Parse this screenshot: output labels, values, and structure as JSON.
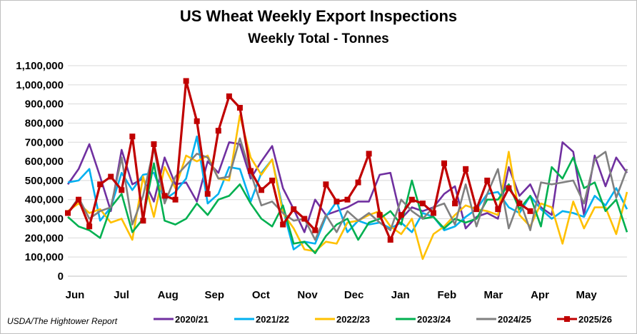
{
  "source": "USDA/The Hightower Report",
  "chart_data": {
    "type": "line",
    "title": "US Wheat Weekly Export Inspections",
    "subtitle": "Weekly Total - Tonnes",
    "xlabel": "",
    "ylabel": "",
    "ylim": [
      0,
      1100000
    ],
    "yticks": [
      "0",
      "100,000",
      "200,000",
      "300,000",
      "400,000",
      "500,000",
      "600,000",
      "700,000",
      "800,000",
      "900,000",
      "1,000,000",
      "1,100,000"
    ],
    "months": [
      "Jun",
      "Jul",
      "Aug",
      "Sep",
      "Oct",
      "Nov",
      "Dec",
      "Jan",
      "Feb",
      "Mar",
      "Apr",
      "May"
    ],
    "weeks_per_year": 53,
    "grid": "horizontal",
    "legend_position": "bottom",
    "series": [
      {
        "name": "2020/21",
        "color": "#7030a0",
        "values": [
          480000,
          560000,
          690000,
          520000,
          340000,
          660000,
          480000,
          510000,
          390000,
          620000,
          480000,
          490000,
          390000,
          600000,
          540000,
          700000,
          690000,
          510000,
          600000,
          680000,
          460000,
          350000,
          230000,
          400000,
          320000,
          340000,
          360000,
          390000,
          390000,
          530000,
          540000,
          300000,
          360000,
          340000,
          360000,
          430000,
          470000,
          250000,
          310000,
          330000,
          300000,
          570000,
          420000,
          480000,
          360000,
          320000,
          700000,
          650000,
          320000,
          630000,
          470000,
          620000,
          540000
        ]
      },
      {
        "name": "2021/22",
        "color": "#00b0f0",
        "values": [
          490000,
          500000,
          560000,
          290000,
          360000,
          540000,
          450000,
          530000,
          540000,
          400000,
          440000,
          510000,
          730000,
          380000,
          430000,
          570000,
          560000,
          390000,
          540000,
          610000,
          350000,
          140000,
          180000,
          170000,
          310000,
          390000,
          230000,
          290000,
          270000,
          280000,
          250000,
          280000,
          230000,
          330000,
          310000,
          240000,
          260000,
          310000,
          350000,
          430000,
          440000,
          360000,
          330000,
          420000,
          350000,
          300000,
          340000,
          330000,
          310000,
          420000,
          370000,
          460000,
          350000
        ]
      },
      {
        "name": "2022/23",
        "color": "#ffc000",
        "values": [
          340000,
          380000,
          330000,
          350000,
          280000,
          300000,
          190000,
          520000,
          310000,
          570000,
          460000,
          630000,
          600000,
          630000,
          510000,
          500000,
          840000,
          620000,
          530000,
          610000,
          330000,
          250000,
          140000,
          130000,
          180000,
          170000,
          280000,
          290000,
          320000,
          340000,
          260000,
          220000,
          300000,
          90000,
          220000,
          260000,
          320000,
          370000,
          350000,
          340000,
          320000,
          650000,
          320000,
          260000,
          380000,
          360000,
          170000,
          390000,
          250000,
          360000,
          360000,
          220000,
          440000
        ]
      },
      {
        "name": "2023/24",
        "color": "#00b050",
        "values": [
          310000,
          260000,
          240000,
          200000,
          360000,
          430000,
          230000,
          300000,
          590000,
          290000,
          270000,
          300000,
          380000,
          320000,
          400000,
          420000,
          480000,
          380000,
          300000,
          260000,
          370000,
          170000,
          180000,
          120000,
          210000,
          270000,
          300000,
          190000,
          280000,
          300000,
          340000,
          270000,
          500000,
          300000,
          310000,
          250000,
          300000,
          280000,
          300000,
          400000,
          400000,
          480000,
          350000,
          420000,
          260000,
          570000,
          510000,
          620000,
          460000,
          490000,
          340000,
          400000,
          230000
        ]
      },
      {
        "name": "2024/25",
        "color": "#808080",
        "values": [
          330000,
          410000,
          300000,
          340000,
          360000,
          620000,
          270000,
          420000,
          670000,
          380000,
          520000,
          580000,
          640000,
          620000,
          510000,
          520000,
          720000,
          540000,
          370000,
          390000,
          330000,
          290000,
          300000,
          190000,
          320000,
          230000,
          340000,
          290000,
          330000,
          280000,
          240000,
          400000,
          340000,
          300000,
          360000,
          380000,
          270000,
          480000,
          260000,
          430000,
          560000,
          250000,
          400000,
          240000,
          490000,
          480000,
          490000,
          500000,
          380000,
          610000,
          650000,
          410000,
          560000
        ]
      },
      {
        "name": "2025/26",
        "color": "#c00000",
        "values": [
          330000,
          400000,
          260000,
          480000,
          520000,
          450000,
          730000,
          290000,
          690000,
          420000,
          400000,
          1020000,
          810000,
          430000,
          760000,
          940000,
          880000,
          550000,
          450000,
          500000,
          270000,
          350000,
          300000,
          240000,
          480000,
          390000,
          400000,
          490000,
          640000,
          320000,
          190000,
          320000,
          400000,
          380000,
          330000,
          590000,
          380000,
          560000,
          350000,
          500000,
          350000,
          460000,
          380000,
          340000
        ]
      }
    ]
  }
}
